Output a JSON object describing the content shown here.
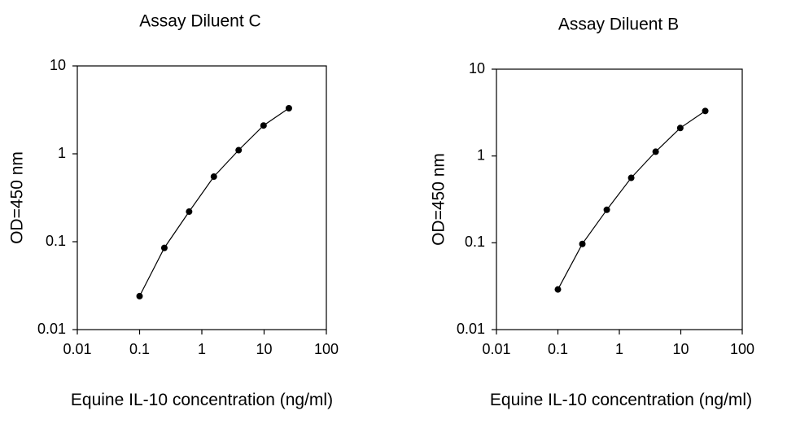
{
  "chart_data": [
    {
      "type": "scatter",
      "title": "Assay Diluent C",
      "xlabel": "Equine IL-10 concentration (ng/ml)",
      "ylabel": "OD=450 nm",
      "x_scale": "log",
      "y_scale": "log",
      "xlim": [
        0.01,
        100
      ],
      "ylim": [
        0.01,
        10
      ],
      "x_ticks": [
        "0.01",
        "0.1",
        "1",
        "10",
        "100"
      ],
      "y_ticks": [
        "0.01",
        "0.1",
        "1",
        "10"
      ],
      "grid": false,
      "series": [
        {
          "x": [
            0.1,
            0.25,
            0.625,
            1.56,
            3.9,
            9.8,
            25
          ],
          "y": [
            0.024,
            0.085,
            0.22,
            0.55,
            1.1,
            2.1,
            3.3
          ]
        }
      ]
    },
    {
      "type": "scatter",
      "title": "Assay Diluent B",
      "xlabel": "Equine IL-10 concentration (ng/ml)",
      "ylabel": "OD=450 nm",
      "x_scale": "log",
      "y_scale": "log",
      "xlim": [
        0.01,
        100
      ],
      "ylim": [
        0.01,
        10
      ],
      "x_ticks": [
        "0.01",
        "0.1",
        "1",
        "10",
        "100"
      ],
      "y_ticks": [
        "0.01",
        "0.1",
        "1",
        "10"
      ],
      "grid": false,
      "series": [
        {
          "x": [
            0.1,
            0.25,
            0.625,
            1.56,
            3.9,
            9.8,
            25
          ],
          "y": [
            0.029,
            0.097,
            0.24,
            0.56,
            1.12,
            2.1,
            3.3
          ]
        }
      ]
    }
  ]
}
